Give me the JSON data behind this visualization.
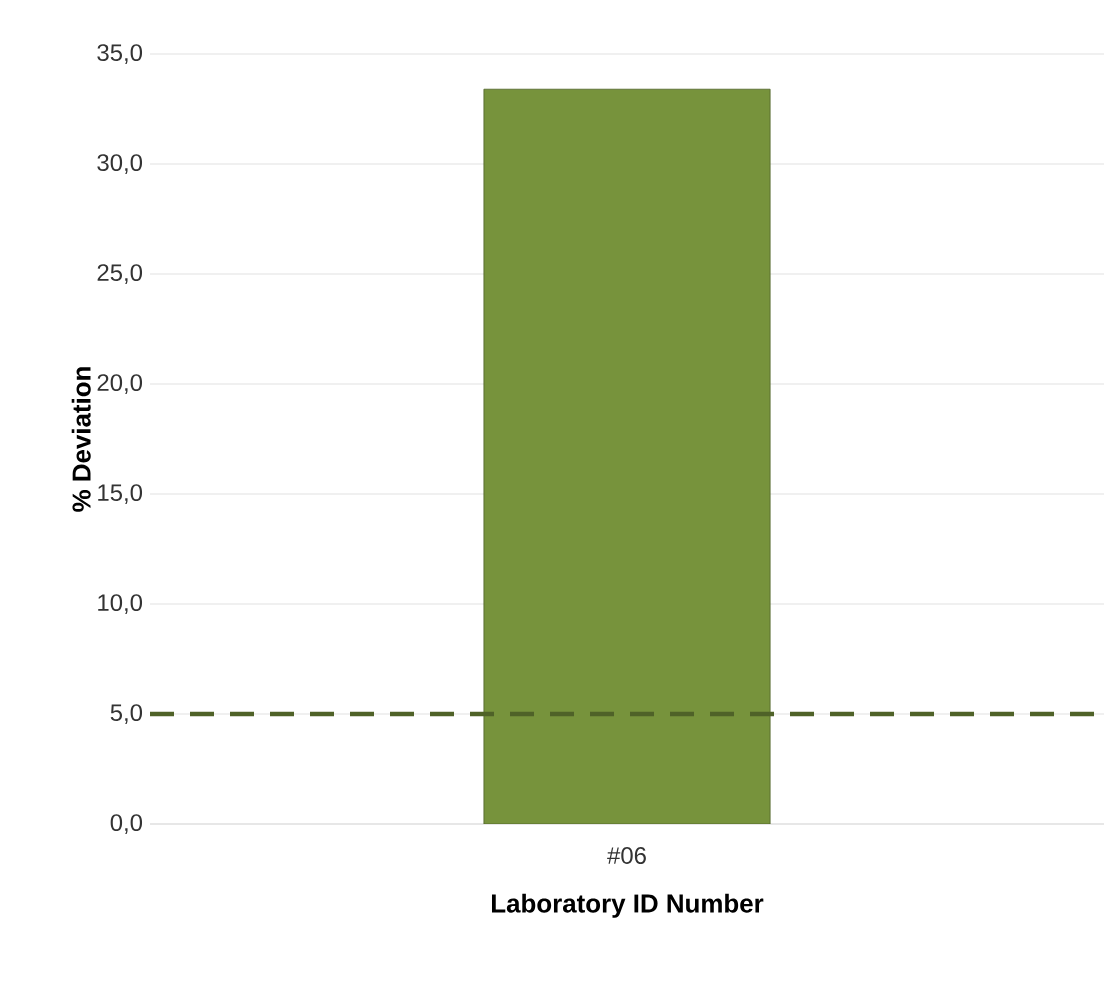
{
  "chart_data": {
    "type": "bar",
    "xlabel": "Laboratory ID Number",
    "ylabel": "% Deviation",
    "categories": [
      "#06"
    ],
    "values": [
      33.4
    ],
    "color": "#77933c",
    "ylim": [
      0,
      35
    ],
    "yticks": [
      {
        "value": 0,
        "label": "0,0"
      },
      {
        "value": 5,
        "label": "5,0"
      },
      {
        "value": 10,
        "label": "10,0"
      },
      {
        "value": 15,
        "label": "15,0"
      },
      {
        "value": 20,
        "label": "20,0"
      },
      {
        "value": 25,
        "label": "25,0"
      },
      {
        "value": 30,
        "label": "30,0"
      },
      {
        "value": 35,
        "label": "35,0"
      }
    ],
    "grid": "y",
    "ref_lines": [
      {
        "axis": "y",
        "value": 5,
        "color": "#4f6228",
        "line_style": "dashed"
      }
    ]
  }
}
